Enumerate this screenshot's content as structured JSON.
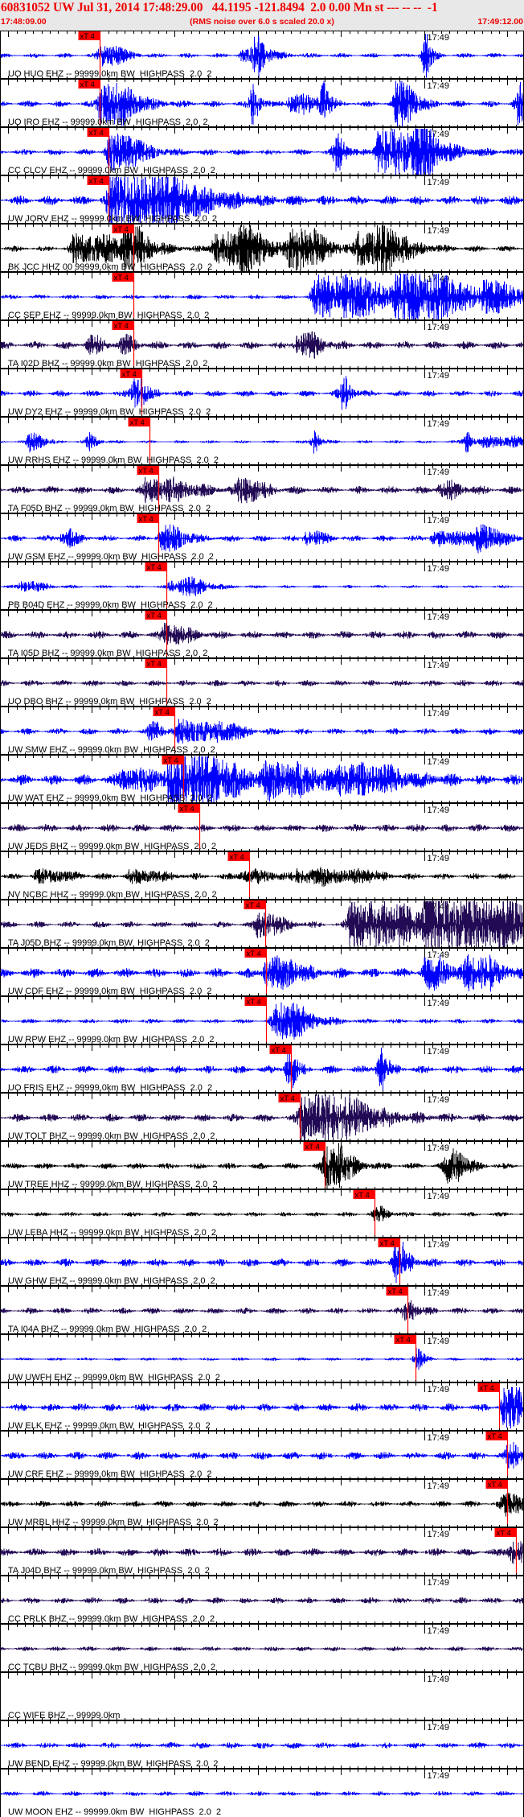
{
  "header": {
    "title": "60831052 UW Jul 31, 2014 17:48:29.00   44.1195 -121.8494  2.0 0.00 Mn st --- -- --  -1",
    "start_time": "17:48:09.00",
    "note": "(RMS noise over 6.0 s scaled 20.0 x)",
    "end_time": "17:49:12.00"
  },
  "colors": {
    "header_text": "#ee0000",
    "header_bg": "#e8e8e8",
    "pick": "#ff0000",
    "blue": "#0000ff",
    "purple": "#220a55",
    "black": "#000000"
  },
  "chart_data": {
    "type": "line",
    "x_start": "17:48:09.00",
    "x_end": "17:49:12.00",
    "minute_tick_label": "17:49",
    "pick_label": "xT 4",
    "traces": [
      {
        "label": "UO HUO EHZ -- 99999.0km BW  HIGHPASS  2.0  2",
        "color": "blue",
        "noise": 3,
        "pick": "17:48:21.0",
        "bursts": [
          [
            "17:48:21.0",
            2,
            12
          ],
          [
            "17:48:39.7",
            0.3,
            28
          ],
          [
            "17:49:00.0",
            0.3,
            28
          ],
          [
            "17:48:38.0",
            3,
            6
          ]
        ]
      },
      {
        "label": "UO IRO EHZ -- 99999.0km BW  HIGHPASS  2.0  2",
        "color": "blue",
        "noise": 4,
        "pick": "17:48:21.0",
        "bursts": [
          [
            "17:48:21.0",
            3,
            25
          ],
          [
            "17:48:39.3",
            0.3,
            28
          ],
          [
            "17:48:47.7",
            0.3,
            28
          ],
          [
            "17:48:56.6",
            1.5,
            28
          ],
          [
            "17:49:11.3",
            0.3,
            28
          ],
          [
            "17:48:43.8",
            2,
            10
          ]
        ]
      },
      {
        "label": "CC CLCV EHZ -- 99999.0km BW  HIGHPASS  2.0  2",
        "color": "blue",
        "noise": 4,
        "pick": "17:48:22.0",
        "bursts": [
          [
            "17:48:22.0",
            3,
            20
          ],
          [
            "17:48:49.4",
            0.5,
            28
          ],
          [
            "17:48:54.4",
            5,
            26
          ],
          [
            "17:48:59.2",
            1,
            28
          ]
        ]
      },
      {
        "label": "UW JORV EHZ -- 99999.0km BW  HIGHPASS  2.0  2",
        "color": "blue",
        "noise": 6,
        "pick": "17:48:22.0",
        "bursts": [
          [
            "17:48:22.0",
            8,
            30
          ]
        ]
      },
      {
        "label": "BK JCC HHZ 00 99999.0km BW  HIGHPASS  2.0  2",
        "color": "black",
        "noise": 4,
        "pick": "17:48:25.0",
        "bursts": [
          [
            "17:48:17.7",
            5,
            15
          ],
          [
            "17:48:24.0",
            2,
            20
          ],
          [
            "17:48:34.6",
            5,
            18
          ],
          [
            "17:48:38.0",
            1,
            20
          ],
          [
            "17:48:43.8",
            3,
            22
          ],
          [
            "17:48:52.0",
            3,
            18
          ],
          [
            "17:48:54.4",
            3,
            12
          ]
        ]
      },
      {
        "label": "CC SEP EHZ -- 99999.0km BW  HIGHPASS  2.0  2",
        "color": "blue",
        "noise": 3,
        "pick": "17:48:25.0",
        "bursts": [
          [
            "17:48:46.7",
            6,
            26
          ],
          [
            "17:48:56.6",
            6,
            28
          ],
          [
            "17:49:07.0",
            3,
            14
          ]
        ]
      },
      {
        "label": "TA I02D BHZ -- 99999.0km BW  HIGHPASS  2.0  2",
        "color": "purple",
        "noise": 5,
        "pick": "17:48:25.0",
        "bursts": [
          [
            "17:48:19.6",
            1,
            10
          ],
          [
            "17:48:23.5",
            1,
            10
          ],
          [
            "17:48:44.7",
            2,
            14
          ]
        ]
      },
      {
        "label": "UW DY2 EHZ -- 99999.0km BW  HIGHPASS  2.0  2",
        "color": "blue",
        "noise": 4,
        "pick": "17:48:26.0",
        "bursts": [
          [
            "17:48:25.0",
            1,
            18
          ],
          [
            "17:48:50.1",
            0.5,
            20
          ]
        ]
      },
      {
        "label": "UW RRHS EHZ -- 99999.0km BW  HIGHPASS  2.0  2",
        "color": "blue",
        "noise": 2,
        "pick": "17:48:27.0",
        "bursts": [
          [
            "17:48:12.5",
            1,
            12
          ],
          [
            "17:48:19.6",
            0.5,
            10
          ],
          [
            "17:48:46.7",
            0.3,
            14
          ],
          [
            "17:49:05.0",
            0.3,
            14
          ],
          [
            "17:49:07.0",
            5,
            6
          ]
        ]
      },
      {
        "label": "TA F05D BHZ -- 99999.0km BW  HIGHPASS  2.0  2",
        "color": "purple",
        "noise": 5,
        "pick": "17:48:28.0",
        "bursts": [
          [
            "17:48:26.4",
            4,
            12
          ],
          [
            "17:48:37.5",
            2,
            14
          ],
          [
            "17:49:01.7",
            2,
            8
          ]
        ]
      },
      {
        "label": "UW GSM EHZ -- 99999.0km BW  HIGHPASS  2.0  2",
        "color": "blue",
        "noise": 4,
        "pick": "17:48:28.0",
        "bursts": [
          [
            "17:48:16.5",
            1,
            10
          ],
          [
            "17:48:28.3",
            2,
            14
          ],
          [
            "17:48:45.7",
            1.5,
            8
          ],
          [
            "17:49:01.0",
            1,
            8
          ],
          [
            "17:49:03.5",
            2,
            8
          ],
          [
            "17:49:06.5",
            2,
            12
          ]
        ]
      },
      {
        "label": "PB B04D EHZ -- 99999.0km BW  HIGHPASS  2.0  2",
        "color": "blue",
        "noise": 2,
        "pick": "17:48:29.0",
        "bursts": [
          [
            "17:48:11.4",
            2,
            6
          ],
          [
            "17:48:29.3",
            3,
            6
          ],
          [
            "17:48:31.0",
            2,
            5
          ]
        ]
      },
      {
        "label": "TA I05D BHZ -- 99999.0km BW  HIGHPASS  2.0  2",
        "color": "purple",
        "noise": 5,
        "pick": "17:48:29.0",
        "bursts": [
          [
            "17:48:28.7",
            2,
            12
          ]
        ]
      },
      {
        "label": "UO DBO BHZ -- 99999.0km BW  HIGHPASS  2.0  2",
        "color": "purple",
        "noise": 4,
        "pick": "17:48:29.0",
        "bursts": []
      },
      {
        "label": "UW SMW EHZ -- 99999.0km BW  HIGHPASS  2.0  2",
        "color": "blue",
        "noise": 4,
        "pick": "17:48:30.0",
        "bursts": [
          [
            "17:48:26.9",
            1,
            10
          ],
          [
            "17:48:30.3",
            3,
            12
          ],
          [
            "17:48:35.1",
            2,
            8
          ]
        ]
      },
      {
        "label": "UW WAT EHZ -- 99999.0km BW  HIGHPASS  2.0  2",
        "color": "blue",
        "noise": 7,
        "pick": "17:48:31.0",
        "bursts": [
          [
            "17:48:29.3",
            6,
            28
          ],
          [
            "17:48:23.5",
            4,
            10
          ],
          [
            "17:48:40.9",
            5,
            16
          ],
          [
            "17:48:49.6",
            6,
            14
          ]
        ]
      },
      {
        "label": "UW JEDS BHZ -- 99999.0km BW  HIGHPASS  2.0  2",
        "color": "purple",
        "noise": 5,
        "pick": "17:48:33.0",
        "bursts": []
      },
      {
        "label": "NV NCBC HHZ -- 99999.0km BW  HIGHPASS  2.0  2",
        "color": "black",
        "noise": 4,
        "pick": "17:48:39.0",
        "bursts": [
          [
            "17:48:13.3",
            3,
            6
          ],
          [
            "17:48:24.5",
            3,
            6
          ],
          [
            "17:48:38.0",
            3,
            6
          ],
          [
            "17:48:44.7",
            2,
            7
          ],
          [
            "17:48:47.7",
            2,
            7
          ],
          [
            "17:48:51.5",
            2,
            7
          ]
        ]
      },
      {
        "label": "TA J05D BHZ -- 99999.0km BW  HIGHPASS  2.0  2",
        "color": "purple",
        "noise": 4,
        "pick": "17:48:40.9",
        "bursts": [
          [
            "17:48:39.9",
            2,
            14
          ],
          [
            "17:48:51.0",
            6,
            28
          ],
          [
            "17:49:00.0",
            11,
            28
          ]
        ]
      },
      {
        "label": "UW CDF EHZ -- 99999.0km BW  HIGHPASS  2.0  2",
        "color": "blue",
        "noise": 6,
        "pick": "17:48:41.0",
        "bursts": [
          [
            "17:48:40.9",
            3,
            16
          ],
          [
            "17:49:00.0",
            2,
            18
          ],
          [
            "17:49:05.0",
            3,
            18
          ]
        ]
      },
      {
        "label": "UW RPW EHZ -- 99999.0km BW  HIGHPASS  2.0  2",
        "color": "blue",
        "noise": 3,
        "pick": "17:48:41.0",
        "bursts": [
          [
            "17:48:41.9",
            3,
            22
          ]
        ]
      },
      {
        "label": "UO FRIS EHZ -- 99999.0km BW  HIGHPASS  2.0  2",
        "color": "blue",
        "noise": 5,
        "pick": "17:48:44.0",
        "bursts": [
          [
            "17:48:43.6",
            0.5,
            25
          ],
          [
            "17:48:54.6",
            0.5,
            26
          ]
        ]
      },
      {
        "label": "UW TOLT BHZ -- 99999.0km BW  HIGHPASS  2.0  2",
        "color": "purple",
        "noise": 5,
        "pick": "17:48:45.0",
        "bursts": [
          [
            "17:48:45.2",
            6,
            28
          ]
        ]
      },
      {
        "label": "UW TREE HHZ -- 99999.0km BW  HIGHPASS  2.0  2",
        "color": "black",
        "noise": 4,
        "pick": "17:48:48.0",
        "bursts": [
          [
            "17:48:48.0",
            2,
            28
          ],
          [
            "17:49:02.6",
            1.5,
            20
          ]
        ]
      },
      {
        "label": "UW LEBA HHZ -- 99999.0km BW  HIGHPASS  2.0  2",
        "color": "black",
        "noise": 3,
        "pick": "17:48:54.0",
        "bursts": [
          [
            "17:48:54.0",
            1,
            8
          ]
        ]
      },
      {
        "label": "UW GHW EHZ -- 99999.0km BW  HIGHPASS  2.0  2",
        "color": "blue",
        "noise": 5,
        "pick": "17:48:57.0",
        "bursts": [
          [
            "17:48:56.4",
            1,
            24
          ]
        ]
      },
      {
        "label": "TA I04A BHZ -- 99999.0km BW  HIGHPASS  2.0  2",
        "color": "purple",
        "noise": 4,
        "pick": "17:48:58.0",
        "bursts": [
          [
            "17:48:57.6",
            1,
            12
          ]
        ]
      },
      {
        "label": "UW UWFH EHZ -- 99999.0km BW  HIGHPASS  2.0  2",
        "color": "blue",
        "noise": 2,
        "pick": "17:48:59.0",
        "bursts": [
          [
            "17:48:59.0",
            0.4,
            14
          ]
        ]
      },
      {
        "label": "UW ELK EHZ -- 99999.0km BW  HIGHPASS  2.0  2",
        "color": "blue",
        "noise": 5,
        "pick": "17:49:09.0",
        "bursts": [
          [
            "17:49:09.5",
            3,
            22
          ]
        ]
      },
      {
        "label": "UW CRF EHZ -- 99999.0km BW  HIGHPASS  2.0  2",
        "color": "blue",
        "noise": 5,
        "pick": "17:49:10.0",
        "bursts": [
          [
            "17:49:09.9",
            1,
            14
          ]
        ]
      },
      {
        "label": "UW MRBL HHZ -- 99999.0km BW  HIGHPASS  2.0  2",
        "color": "black",
        "noise": 4,
        "pick": "17:49:10.0",
        "bursts": [
          [
            "17:49:09.4",
            2,
            12
          ]
        ]
      },
      {
        "label": "TA J04D BHZ -- 99999.0km BW  HIGHPASS  2.0  2",
        "color": "purple",
        "noise": 5,
        "pick": "17:49:11.0",
        "bursts": [
          [
            "17:49:10.4",
            1,
            14
          ]
        ]
      },
      {
        "label": "CC PRLK BHZ -- 99999.0km BW  HIGHPASS  2.0  2",
        "color": "purple",
        "noise": 4,
        "pick": null,
        "bursts": []
      },
      {
        "label": "CC TCBU BHZ -- 99999.0km BW  HIGHPASS  2.0  2",
        "color": "purple",
        "noise": 3,
        "pick": null,
        "bursts": []
      },
      {
        "label": "CC WIFE BHZ -- 99999.0km",
        "color": null,
        "noise": 0,
        "pick": null,
        "bursts": []
      },
      {
        "label": "UW BEND EHZ -- 99999.0km BW  HIGHPASS  2.0  2",
        "color": "blue",
        "noise": 4,
        "pick": null,
        "bursts": []
      },
      {
        "label": "UW MOON EHZ -- 99999.0km BW  HIGHPASS  2.0  2",
        "color": "blue",
        "noise": 3,
        "pick": null,
        "bursts": []
      }
    ]
  }
}
